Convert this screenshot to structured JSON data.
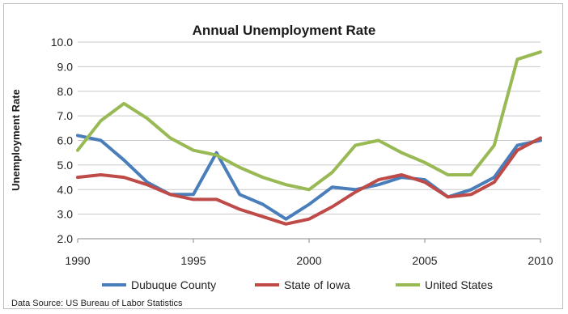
{
  "chart_data": {
    "type": "line",
    "title": "Annual Unemployment Rate",
    "xlabel": "",
    "ylabel": "Unemployment Rate",
    "xlim": [
      1990,
      2010
    ],
    "ylim": [
      2.0,
      10.0
    ],
    "x_ticks": [
      "1990",
      "1995",
      "2000",
      "2005",
      "2010"
    ],
    "y_ticks": [
      "2.0",
      "3.0",
      "4.0",
      "5.0",
      "6.0",
      "7.0",
      "8.0",
      "9.0",
      "10.0"
    ],
    "grid": "horizontal",
    "legend_position": "bottom",
    "x": [
      1990,
      1991,
      1992,
      1993,
      1994,
      1995,
      1996,
      1997,
      1998,
      1999,
      2000,
      2001,
      2002,
      2003,
      2004,
      2005,
      2006,
      2007,
      2008,
      2009,
      2010
    ],
    "series": [
      {
        "name": "Dubuque County",
        "color": "#4a7ebb",
        "values": [
          6.2,
          6.0,
          5.2,
          4.3,
          3.8,
          3.8,
          5.5,
          3.8,
          3.4,
          2.8,
          3.4,
          4.1,
          4.0,
          4.2,
          4.5,
          4.4,
          3.7,
          4.0,
          4.5,
          5.8,
          6.0
        ]
      },
      {
        "name": "State of Iowa",
        "color": "#be4b48",
        "values": [
          4.5,
          4.6,
          4.5,
          4.2,
          3.8,
          3.6,
          3.6,
          3.2,
          2.9,
          2.6,
          2.8,
          3.3,
          3.9,
          4.4,
          4.6,
          4.3,
          3.7,
          3.8,
          4.3,
          5.6,
          6.1
        ]
      },
      {
        "name": "United States",
        "color": "#98b954",
        "values": [
          5.6,
          6.8,
          7.5,
          6.9,
          6.1,
          5.6,
          5.4,
          4.9,
          4.5,
          4.2,
          4.0,
          4.7,
          5.8,
          6.0,
          5.5,
          5.1,
          4.6,
          4.6,
          5.8,
          9.3,
          9.6
        ]
      }
    ]
  },
  "source_note": "Data Source: US Bureau of Labor Statistics"
}
